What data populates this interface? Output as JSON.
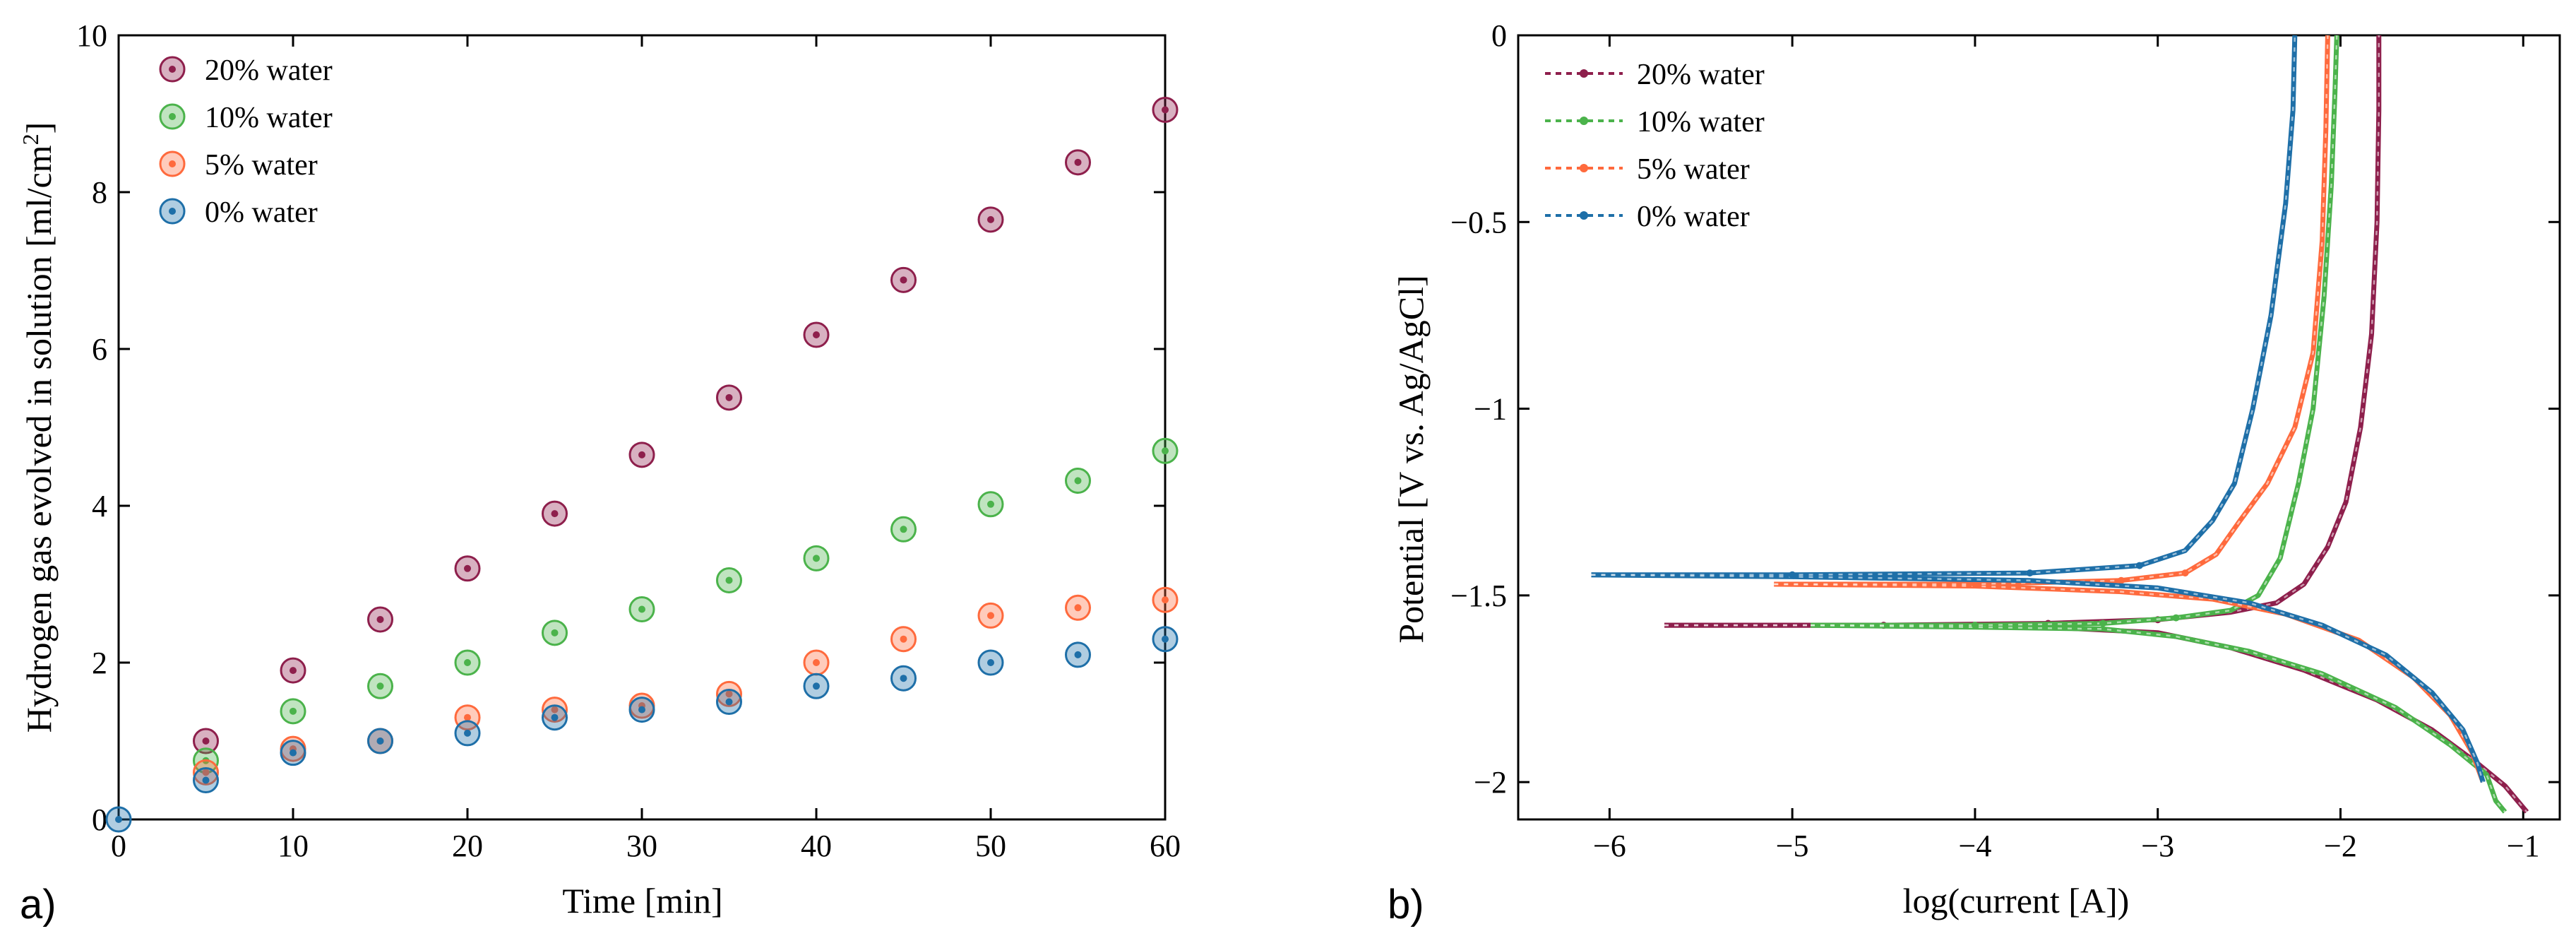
{
  "figure": {
    "panel_a_label": "a)",
    "panel_b_label": "b)"
  },
  "chart_data": [
    {
      "type": "scatter",
      "xlabel": "Time [min]",
      "ylabel_prefix": "Hydrogen gas evolved in solution [ml/cm",
      "ylabel_superscript": "2",
      "ylabel_suffix": "]",
      "xlim": [
        0,
        60
      ],
      "ylim": [
        0,
        10
      ],
      "x_ticks": [
        0,
        10,
        20,
        30,
        40,
        50,
        60
      ],
      "y_ticks": [
        0,
        2,
        4,
        6,
        8,
        10
      ],
      "grid": false,
      "legend_position": "top-left",
      "series": [
        {
          "name": "20% water",
          "color": "#8e1f4c",
          "x": [
            5,
            10,
            15,
            20,
            25,
            30,
            35,
            40,
            45,
            50,
            55,
            60
          ],
          "y": [
            1.0,
            1.9,
            2.55,
            3.2,
            3.9,
            4.65,
            5.38,
            6.18,
            6.88,
            7.65,
            8.38,
            9.05
          ]
        },
        {
          "name": "10% water",
          "color": "#4bb34b",
          "x": [
            5,
            10,
            15,
            20,
            25,
            30,
            35,
            40,
            45,
            50,
            55,
            60
          ],
          "y": [
            0.75,
            1.38,
            1.7,
            2.0,
            2.38,
            2.68,
            3.05,
            3.33,
            3.7,
            4.02,
            4.32,
            4.7
          ]
        },
        {
          "name": "5% water",
          "color": "#ff6a3d",
          "x": [
            5,
            10,
            15,
            20,
            25,
            30,
            35,
            40,
            45,
            50,
            55,
            60
          ],
          "y": [
            0.6,
            0.9,
            1.0,
            1.3,
            1.4,
            1.45,
            1.6,
            2.0,
            2.3,
            2.6,
            2.7,
            2.8
          ]
        },
        {
          "name": "0% water",
          "color": "#1e6fa8",
          "x": [
            0,
            5,
            10,
            15,
            20,
            25,
            30,
            35,
            40,
            45,
            50,
            55,
            60
          ],
          "y": [
            0,
            0.5,
            0.85,
            1.0,
            1.1,
            1.3,
            1.4,
            1.5,
            1.7,
            1.8,
            2.0,
            2.1,
            2.3
          ]
        }
      ]
    },
    {
      "type": "line",
      "xlabel": "log(current [A])",
      "ylabel": "Potential [V vs. Ag/AgCl]",
      "xlim": [
        -6.5,
        -0.8
      ],
      "ylim": [
        -2.1,
        0
      ],
      "x_ticks": [
        -6,
        -5,
        -4,
        -3,
        -2,
        -1
      ],
      "x_tick_labels": [
        "−6",
        "−5",
        "−4",
        "−3",
        "−2",
        "−1"
      ],
      "y_ticks": [
        0,
        -0.5,
        -1,
        -1.5,
        -2
      ],
      "y_tick_labels": [
        "0",
        "−0.5",
        "−1",
        "−1.5",
        "−2"
      ],
      "grid": false,
      "legend_position": "top-left",
      "series": [
        {
          "name": "20% water",
          "color": "#8e1f4c",
          "anodic": [
            [
              -5.7,
              -1.58
            ],
            [
              -4.5,
              -1.58
            ],
            [
              -3.6,
              -1.575
            ],
            [
              -3.0,
              -1.565
            ],
            [
              -2.6,
              -1.545
            ],
            [
              -2.35,
              -1.52
            ],
            [
              -2.2,
              -1.47
            ],
            [
              -2.07,
              -1.37
            ],
            [
              -1.97,
              -1.25
            ],
            [
              -1.89,
              -1.05
            ],
            [
              -1.83,
              -0.8
            ],
            [
              -1.8,
              -0.5
            ],
            [
              -1.79,
              -0.2
            ],
            [
              -1.79,
              0
            ]
          ],
          "cathodic": [
            [
              -5.7,
              -1.58
            ],
            [
              -4.5,
              -1.58
            ],
            [
              -3.6,
              -1.585
            ],
            [
              -3.0,
              -1.6
            ],
            [
              -2.6,
              -1.64
            ],
            [
              -2.2,
              -1.7
            ],
            [
              -1.8,
              -1.78
            ],
            [
              -1.5,
              -1.86
            ],
            [
              -1.25,
              -1.95
            ],
            [
              -1.1,
              -2.01
            ],
            [
              -0.98,
              -2.08
            ]
          ]
        },
        {
          "name": "10% water",
          "color": "#4bb34b",
          "anodic": [
            [
              -4.9,
              -1.58
            ],
            [
              -4.0,
              -1.58
            ],
            [
              -3.3,
              -1.575
            ],
            [
              -2.9,
              -1.56
            ],
            [
              -2.6,
              -1.54
            ],
            [
              -2.45,
              -1.5
            ],
            [
              -2.33,
              -1.4
            ],
            [
              -2.23,
              -1.2
            ],
            [
              -2.15,
              -1.0
            ],
            [
              -2.09,
              -0.7
            ],
            [
              -2.05,
              -0.4
            ],
            [
              -2.03,
              -0.15
            ],
            [
              -2.02,
              0
            ]
          ],
          "cathodic": [
            [
              -4.9,
              -1.58
            ],
            [
              -4.0,
              -1.585
            ],
            [
              -3.3,
              -1.59
            ],
            [
              -2.9,
              -1.61
            ],
            [
              -2.5,
              -1.65
            ],
            [
              -2.1,
              -1.71
            ],
            [
              -1.7,
              -1.8
            ],
            [
              -1.4,
              -1.9
            ],
            [
              -1.2,
              -1.98
            ],
            [
              -1.15,
              -2.05
            ],
            [
              -1.1,
              -2.08
            ]
          ]
        },
        {
          "name": "5% water",
          "color": "#ff6a3d",
          "anodic": [
            [
              -5.1,
              -1.47
            ],
            [
              -4.0,
              -1.47
            ],
            [
              -3.2,
              -1.46
            ],
            [
              -2.85,
              -1.44
            ],
            [
              -2.68,
              -1.39
            ],
            [
              -2.55,
              -1.3
            ],
            [
              -2.4,
              -1.2
            ],
            [
              -2.25,
              -1.05
            ],
            [
              -2.15,
              -0.85
            ],
            [
              -2.1,
              -0.55
            ],
            [
              -2.08,
              -0.25
            ],
            [
              -2.07,
              0
            ]
          ],
          "cathodic": [
            [
              -5.1,
              -1.47
            ],
            [
              -4.0,
              -1.475
            ],
            [
              -3.2,
              -1.49
            ],
            [
              -2.7,
              -1.51
            ],
            [
              -2.3,
              -1.55
            ],
            [
              -1.9,
              -1.62
            ],
            [
              -1.6,
              -1.72
            ],
            [
              -1.4,
              -1.82
            ],
            [
              -1.28,
              -1.92
            ],
            [
              -1.22,
              -2.0
            ]
          ]
        },
        {
          "name": "0% water",
          "color": "#1e6fa8",
          "anodic": [
            [
              -6.1,
              -1.445
            ],
            [
              -5.0,
              -1.445
            ],
            [
              -3.7,
              -1.44
            ],
            [
              -3.1,
              -1.42
            ],
            [
              -2.85,
              -1.38
            ],
            [
              -2.7,
              -1.3
            ],
            [
              -2.58,
              -1.2
            ],
            [
              -2.48,
              -1.0
            ],
            [
              -2.38,
              -0.75
            ],
            [
              -2.3,
              -0.45
            ],
            [
              -2.26,
              -0.2
            ],
            [
              -2.25,
              0
            ]
          ],
          "cathodic": [
            [
              -6.1,
              -1.445
            ],
            [
              -5.0,
              -1.45
            ],
            [
              -3.7,
              -1.46
            ],
            [
              -3.0,
              -1.48
            ],
            [
              -2.5,
              -1.52
            ],
            [
              -2.1,
              -1.58
            ],
            [
              -1.75,
              -1.66
            ],
            [
              -1.5,
              -1.76
            ],
            [
              -1.33,
              -1.86
            ],
            [
              -1.25,
              -1.95
            ],
            [
              -1.22,
              -2.0
            ]
          ]
        }
      ]
    }
  ]
}
